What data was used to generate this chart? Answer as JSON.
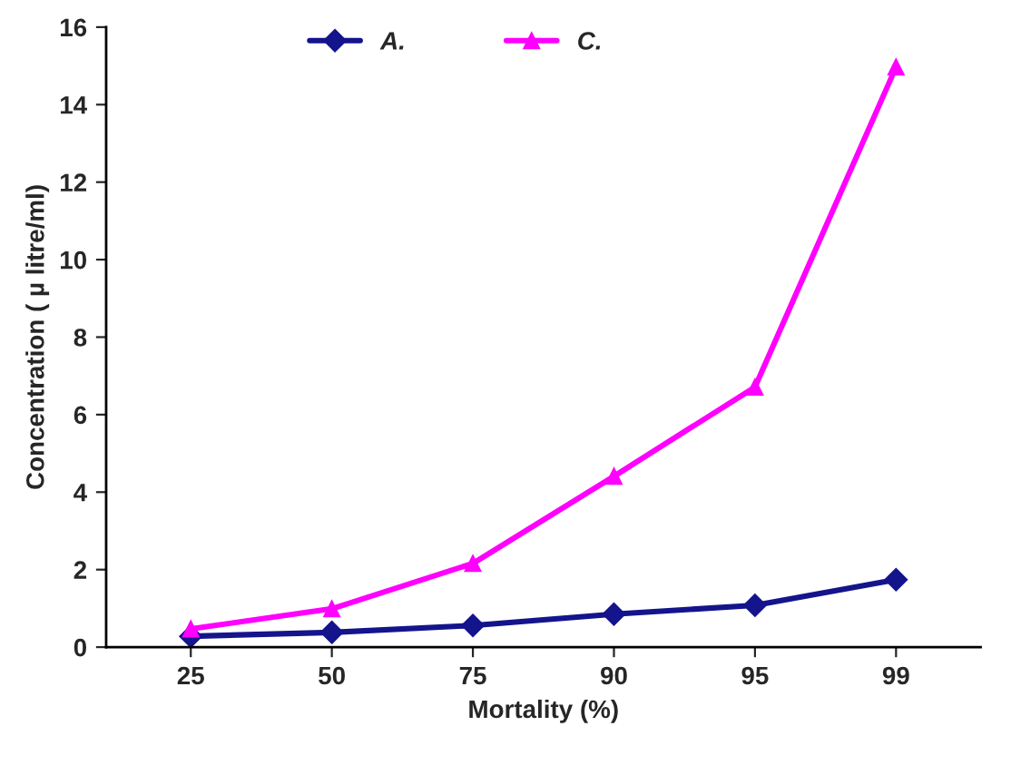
{
  "chart_data": {
    "type": "line",
    "xlabel": "Mortality (%)",
    "ylabel": "Concentration ( µ litre/ml)",
    "categories": [
      "25",
      "50",
      "75",
      "90",
      "95",
      "99"
    ],
    "series": [
      {
        "name": "A.",
        "color": "#14148c",
        "marker": "diamond",
        "values": [
          0.28,
          0.38,
          0.56,
          0.85,
          1.08,
          1.74
        ]
      },
      {
        "name": "C.",
        "color": "#ff00ff",
        "marker": "triangle",
        "values": [
          0.47,
          0.99,
          2.16,
          4.41,
          6.71,
          14.97
        ]
      }
    ],
    "ylim": [
      0,
      16
    ],
    "yticks": [
      0,
      2,
      4,
      6,
      8,
      10,
      12,
      14,
      16
    ],
    "grid": false,
    "legend": "top",
    "line_style": "solid"
  }
}
